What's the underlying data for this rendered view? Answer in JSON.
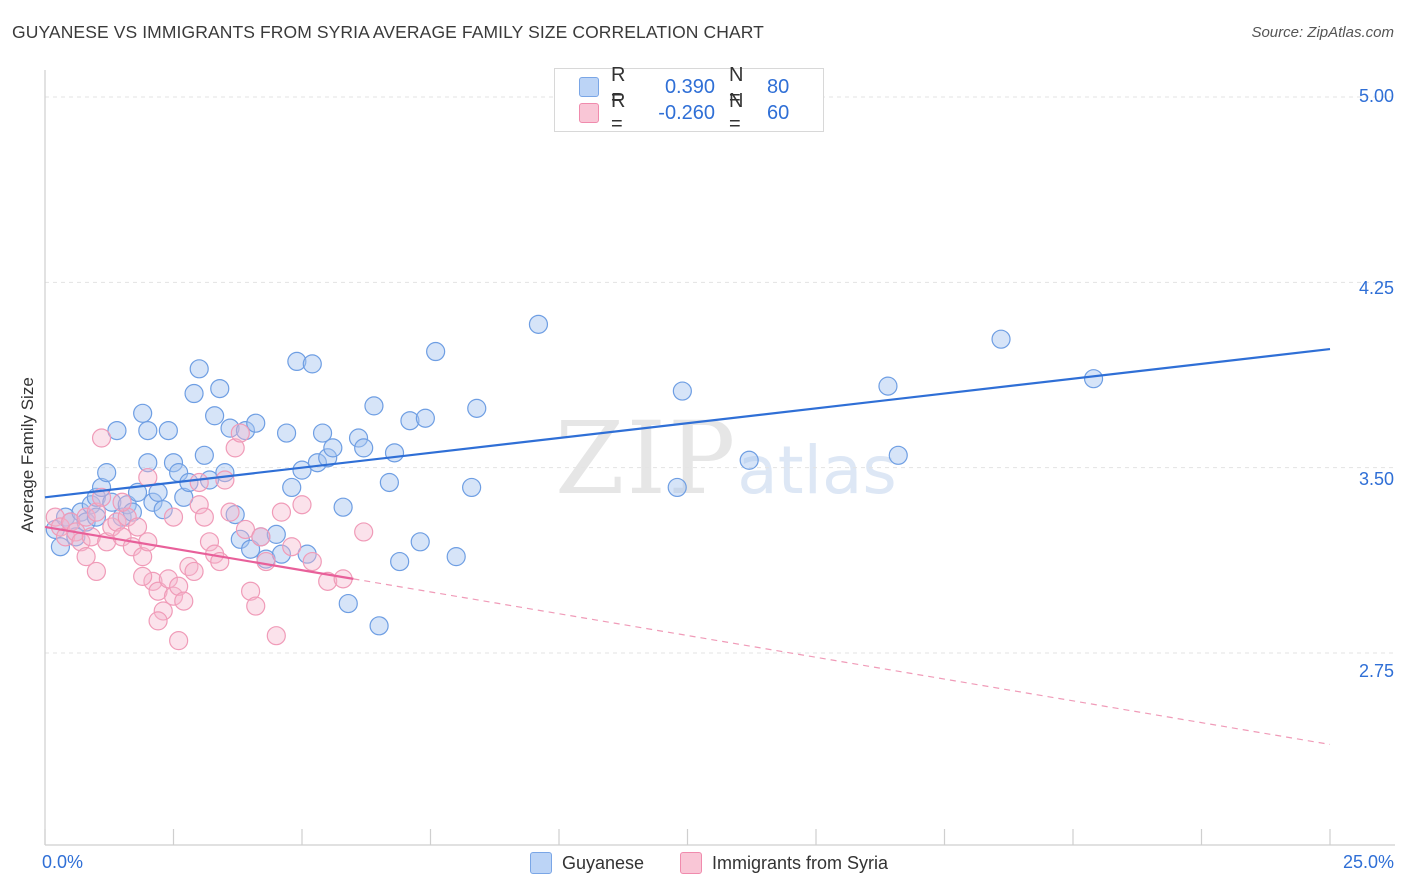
{
  "title": "GUYANESE VS IMMIGRANTS FROM SYRIA AVERAGE FAMILY SIZE CORRELATION CHART",
  "source": "Source: ZipAtlas.com",
  "watermark": {
    "zip": "ZIP",
    "atlas": "atlas"
  },
  "legend": {
    "rows": [
      {
        "r_label": "R =",
        "r_value": "0.390",
        "n_label": "N =",
        "n_value": "80",
        "color": "#7aa6e6"
      },
      {
        "r_label": "R =",
        "r_value": "-0.260",
        "n_label": "N =",
        "n_value": "60",
        "color": "#f08bad"
      }
    ]
  },
  "bottom_legend": {
    "series1": "Guyanese",
    "series2": "Immigrants from Syria"
  },
  "x_axis": {
    "min_label": "0.0%",
    "max_label": "25.0%"
  },
  "chart_data": {
    "type": "scatter",
    "title": "GUYANESE VS IMMIGRANTS FROM SYRIA AVERAGE FAMILY SIZE CORRELATION CHART",
    "xlabel": "",
    "ylabel": "Average Family Size",
    "xlim": [
      0,
      25
    ],
    "ylim": [
      2.0,
      5.2
    ],
    "y_ticks": [
      "5.00",
      "4.25",
      "3.50",
      "2.75"
    ],
    "y_tick_values": [
      5.0,
      4.25,
      3.5,
      2.75
    ],
    "series": [
      {
        "name": "Guyanese",
        "color": "#5b93e0",
        "trend": {
          "x": [
            0,
            25
          ],
          "y": [
            3.38,
            3.98
          ],
          "dashed_extension": false
        },
        "points": [
          [
            0.2,
            3.25
          ],
          [
            0.3,
            3.18
          ],
          [
            0.4,
            3.3
          ],
          [
            0.5,
            3.28
          ],
          [
            0.6,
            3.22
          ],
          [
            0.7,
            3.32
          ],
          [
            0.8,
            3.28
          ],
          [
            0.9,
            3.35
          ],
          [
            1.0,
            3.38
          ],
          [
            1.1,
            3.42
          ],
          [
            1.2,
            3.48
          ],
          [
            1.3,
            3.36
          ],
          [
            1.4,
            3.65
          ],
          [
            1.5,
            3.3
          ],
          [
            1.6,
            3.35
          ],
          [
            1.7,
            3.32
          ],
          [
            1.8,
            3.4
          ],
          [
            1.9,
            3.72
          ],
          [
            2.0,
            3.65
          ],
          [
            2.1,
            3.36
          ],
          [
            2.2,
            3.4
          ],
          [
            2.3,
            3.33
          ],
          [
            2.4,
            3.65
          ],
          [
            2.5,
            3.52
          ],
          [
            2.6,
            3.48
          ],
          [
            2.7,
            3.38
          ],
          [
            2.8,
            3.44
          ],
          [
            2.9,
            3.8
          ],
          [
            3.0,
            3.9
          ],
          [
            3.1,
            3.55
          ],
          [
            3.2,
            3.45
          ],
          [
            3.3,
            3.71
          ],
          [
            3.4,
            3.82
          ],
          [
            3.5,
            3.48
          ],
          [
            3.6,
            3.66
          ],
          [
            3.7,
            3.31
          ],
          [
            3.8,
            3.21
          ],
          [
            3.9,
            3.65
          ],
          [
            4.0,
            3.17
          ],
          [
            4.1,
            3.68
          ],
          [
            4.2,
            3.22
          ],
          [
            4.3,
            3.13
          ],
          [
            4.5,
            3.23
          ],
          [
            4.6,
            3.15
          ],
          [
            4.7,
            3.64
          ],
          [
            4.8,
            3.42
          ],
          [
            4.9,
            3.93
          ],
          [
            5.0,
            3.49
          ],
          [
            5.1,
            3.15
          ],
          [
            5.2,
            3.92
          ],
          [
            5.3,
            3.52
          ],
          [
            5.4,
            3.64
          ],
          [
            5.5,
            3.54
          ],
          [
            5.6,
            3.58
          ],
          [
            5.8,
            3.34
          ],
          [
            5.9,
            2.95
          ],
          [
            6.1,
            3.62
          ],
          [
            6.2,
            3.58
          ],
          [
            6.4,
            3.75
          ],
          [
            6.5,
            2.86
          ],
          [
            6.7,
            3.44
          ],
          [
            6.8,
            3.56
          ],
          [
            6.9,
            3.12
          ],
          [
            7.1,
            3.69
          ],
          [
            7.3,
            3.2
          ],
          [
            7.4,
            3.7
          ],
          [
            7.6,
            3.97
          ],
          [
            8.0,
            3.14
          ],
          [
            8.3,
            3.42
          ],
          [
            8.4,
            3.74
          ],
          [
            9.6,
            4.08
          ],
          [
            12.3,
            3.42
          ],
          [
            12.4,
            3.81
          ],
          [
            13.7,
            3.53
          ],
          [
            16.4,
            3.83
          ],
          [
            16.6,
            3.55
          ],
          [
            18.6,
            4.02
          ],
          [
            20.4,
            3.86
          ],
          [
            1.0,
            3.3
          ],
          [
            2.0,
            3.52
          ]
        ]
      },
      {
        "name": "Immigrants from Syria",
        "color": "#f08bad",
        "trend": {
          "x": [
            0,
            6
          ],
          "y": [
            3.26,
            3.05
          ],
          "dashed_extension": {
            "x": [
              6,
              25
            ],
            "y": [
              3.05,
              2.38
            ]
          }
        },
        "points": [
          [
            0.2,
            3.3
          ],
          [
            0.3,
            3.26
          ],
          [
            0.4,
            3.22
          ],
          [
            0.5,
            3.28
          ],
          [
            0.6,
            3.24
          ],
          [
            0.7,
            3.2
          ],
          [
            0.8,
            3.3
          ],
          [
            0.9,
            3.22
          ],
          [
            1.0,
            3.32
          ],
          [
            1.1,
            3.38
          ],
          [
            1.2,
            3.2
          ],
          [
            1.3,
            3.26
          ],
          [
            1.4,
            3.28
          ],
          [
            1.5,
            3.22
          ],
          [
            1.6,
            3.3
          ],
          [
            1.7,
            3.18
          ],
          [
            1.8,
            3.26
          ],
          [
            1.9,
            3.14
          ],
          [
            2.0,
            3.2
          ],
          [
            2.1,
            3.04
          ],
          [
            2.2,
            3.0
          ],
          [
            2.3,
            2.92
          ],
          [
            2.4,
            3.05
          ],
          [
            2.5,
            2.98
          ],
          [
            2.6,
            3.02
          ],
          [
            2.7,
            2.96
          ],
          [
            2.8,
            3.1
          ],
          [
            2.9,
            3.08
          ],
          [
            3.0,
            3.35
          ],
          [
            3.1,
            3.3
          ],
          [
            3.2,
            3.2
          ],
          [
            3.3,
            3.15
          ],
          [
            3.4,
            3.12
          ],
          [
            3.5,
            3.45
          ],
          [
            3.6,
            3.32
          ],
          [
            3.7,
            3.58
          ],
          [
            3.8,
            3.64
          ],
          [
            3.9,
            3.25
          ],
          [
            4.0,
            3.0
          ],
          [
            4.1,
            2.94
          ],
          [
            4.2,
            3.22
          ],
          [
            4.3,
            3.12
          ],
          [
            4.5,
            2.82
          ],
          [
            4.6,
            3.32
          ],
          [
            4.8,
            3.18
          ],
          [
            5.0,
            3.35
          ],
          [
            5.2,
            3.12
          ],
          [
            5.5,
            3.04
          ],
          [
            5.8,
            3.05
          ],
          [
            6.2,
            3.24
          ],
          [
            1.1,
            3.62
          ],
          [
            2.0,
            3.46
          ],
          [
            2.2,
            2.88
          ],
          [
            1.0,
            3.08
          ],
          [
            1.5,
            3.36
          ],
          [
            0.8,
            3.14
          ],
          [
            3.0,
            3.44
          ],
          [
            2.5,
            3.3
          ],
          [
            1.9,
            3.06
          ],
          [
            2.6,
            2.8
          ]
        ]
      }
    ]
  }
}
